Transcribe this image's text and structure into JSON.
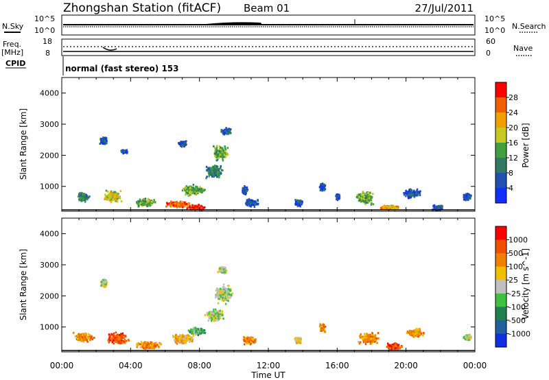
{
  "header": {
    "station": "Zhongshan Station (fitACF)",
    "beam": "Beam 01",
    "date": "27/Jul/2011"
  },
  "sky_panel": {
    "left_label": "N.Sky",
    "right_label": "N.Search",
    "left_ticks": [
      "10^5",
      "10^0"
    ],
    "right_ticks": [
      "10^5",
      "10^0"
    ]
  },
  "freq_panel": {
    "left_label_1": "Freq.",
    "left_label_2": "[MHz]",
    "right_label": "Nave",
    "left_ticks": [
      "18",
      "8"
    ],
    "right_ticks": [
      "60",
      "0"
    ]
  },
  "cpid": {
    "label": "CPID",
    "mode": "normal (fast stereo) 153"
  },
  "chart_data": [
    {
      "type": "heatmap",
      "name": "power",
      "ylabel": "Slant Range [km]",
      "xlabel": "Time UT",
      "x_ticks": [
        "00:00",
        "04:00",
        "08:00",
        "12:00",
        "16:00",
        "20:00",
        "00:00"
      ],
      "xlim": [
        0,
        24
      ],
      "ylim": [
        200,
        4500
      ],
      "y_ticks": [
        1000,
        2000,
        3000,
        4000
      ],
      "colorbar": {
        "label": "Power [dB]",
        "range": [
          0,
          32
        ],
        "ticks": [
          4,
          8,
          12,
          16,
          20,
          24,
          28
        ],
        "colors": [
          "#1030ff",
          "#2050b0",
          "#2f7a60",
          "#40a040",
          "#c8c820",
          "#f0a000",
          "#f06000",
          "#ff0000"
        ]
      },
      "clusters": [
        {
          "t": 1.2,
          "r": 700,
          "w": 0.9,
          "h": 350,
          "level": 2
        },
        {
          "t": 2.9,
          "r": 700,
          "w": 1.1,
          "h": 450,
          "level": 4
        },
        {
          "t": 2.4,
          "r": 2500,
          "w": 0.6,
          "h": 300,
          "level": 1
        },
        {
          "t": 3.6,
          "r": 2150,
          "w": 0.5,
          "h": 150,
          "level": 1
        },
        {
          "t": 4.8,
          "r": 500,
          "w": 1.5,
          "h": 300,
          "level": 3
        },
        {
          "t": 6.7,
          "r": 450,
          "w": 1.8,
          "h": 250,
          "level": 6
        },
        {
          "t": 7.8,
          "r": 350,
          "w": 1.2,
          "h": 200,
          "level": 7
        },
        {
          "t": 7.6,
          "r": 900,
          "w": 1.6,
          "h": 400,
          "level": 3
        },
        {
          "t": 8.8,
          "r": 1500,
          "w": 1.2,
          "h": 500,
          "level": 2
        },
        {
          "t": 9.2,
          "r": 2100,
          "w": 1.0,
          "h": 600,
          "level": 3
        },
        {
          "t": 9.5,
          "r": 2800,
          "w": 0.8,
          "h": 250,
          "level": 1
        },
        {
          "t": 7.0,
          "r": 2400,
          "w": 0.6,
          "h": 200,
          "level": 1
        },
        {
          "t": 10.6,
          "r": 900,
          "w": 0.4,
          "h": 300,
          "level": 1
        },
        {
          "t": 11.0,
          "r": 500,
          "w": 1.0,
          "h": 300,
          "level": 1
        },
        {
          "t": 13.7,
          "r": 500,
          "w": 0.6,
          "h": 300,
          "level": 1
        },
        {
          "t": 15.1,
          "r": 1000,
          "w": 0.4,
          "h": 300,
          "level": 1
        },
        {
          "t": 16.0,
          "r": 700,
          "w": 0.3,
          "h": 250,
          "level": 1
        },
        {
          "t": 17.6,
          "r": 650,
          "w": 1.2,
          "h": 500,
          "level": 3
        },
        {
          "t": 19.0,
          "r": 350,
          "w": 1.4,
          "h": 200,
          "level": 5
        },
        {
          "t": 20.3,
          "r": 800,
          "w": 1.2,
          "h": 350,
          "level": 1
        },
        {
          "t": 21.8,
          "r": 350,
          "w": 0.8,
          "h": 200,
          "level": 1
        },
        {
          "t": 23.5,
          "r": 700,
          "w": 0.6,
          "h": 250,
          "level": 1
        }
      ]
    },
    {
      "type": "heatmap",
      "name": "velocity",
      "ylabel": "Slant Range [km]",
      "xlabel": "Time UT",
      "x_ticks": [
        "00:00",
        "04:00",
        "08:00",
        "12:00",
        "16:00",
        "20:00",
        "00:00"
      ],
      "xlim": [
        0,
        24
      ],
      "ylim": [
        200,
        4500
      ],
      "y_ticks": [
        1000,
        2000,
        3000,
        4000
      ],
      "colorbar": {
        "label": "Velocity [m s^-1]",
        "ticks": [
          "1000",
          "500",
          "100",
          "25",
          "-25",
          "-100",
          "-500",
          "-1000"
        ],
        "colors": [
          "#1030e0",
          "#2060a0",
          "#208050",
          "#40c040",
          "#c0c0c0",
          "#f0c000",
          "#f08000",
          "#f05000",
          "#ff0000"
        ]
      },
      "clusters": [
        {
          "t": 1.2,
          "r": 700,
          "w": 1.4,
          "h": 350,
          "level": 6
        },
        {
          "t": 3.2,
          "r": 650,
          "w": 1.5,
          "h": 450,
          "level": 7
        },
        {
          "t": 2.4,
          "r": 2450,
          "w": 0.5,
          "h": 300,
          "level": 4
        },
        {
          "t": 5.0,
          "r": 450,
          "w": 1.8,
          "h": 300,
          "level": 6
        },
        {
          "t": 7.0,
          "r": 650,
          "w": 1.6,
          "h": 400,
          "level": 5
        },
        {
          "t": 7.8,
          "r": 900,
          "w": 1.2,
          "h": 300,
          "level": 3
        },
        {
          "t": 8.8,
          "r": 1400,
          "w": 1.2,
          "h": 500,
          "level": 4
        },
        {
          "t": 9.4,
          "r": 2100,
          "w": 1.2,
          "h": 700,
          "level": 4
        },
        {
          "t": 9.3,
          "r": 2850,
          "w": 0.6,
          "h": 250,
          "level": 4
        },
        {
          "t": 10.8,
          "r": 600,
          "w": 1.0,
          "h": 300,
          "level": 6
        },
        {
          "t": 13.7,
          "r": 600,
          "w": 0.5,
          "h": 250,
          "level": 5
        },
        {
          "t": 15.1,
          "r": 1000,
          "w": 0.4,
          "h": 300,
          "level": 6
        },
        {
          "t": 17.8,
          "r": 650,
          "w": 1.4,
          "h": 450,
          "level": 6
        },
        {
          "t": 19.2,
          "r": 400,
          "w": 1.2,
          "h": 250,
          "level": 7
        },
        {
          "t": 20.5,
          "r": 850,
          "w": 1.2,
          "h": 350,
          "level": 6
        },
        {
          "t": 23.5,
          "r": 700,
          "w": 0.6,
          "h": 250,
          "level": 4
        }
      ]
    }
  ]
}
